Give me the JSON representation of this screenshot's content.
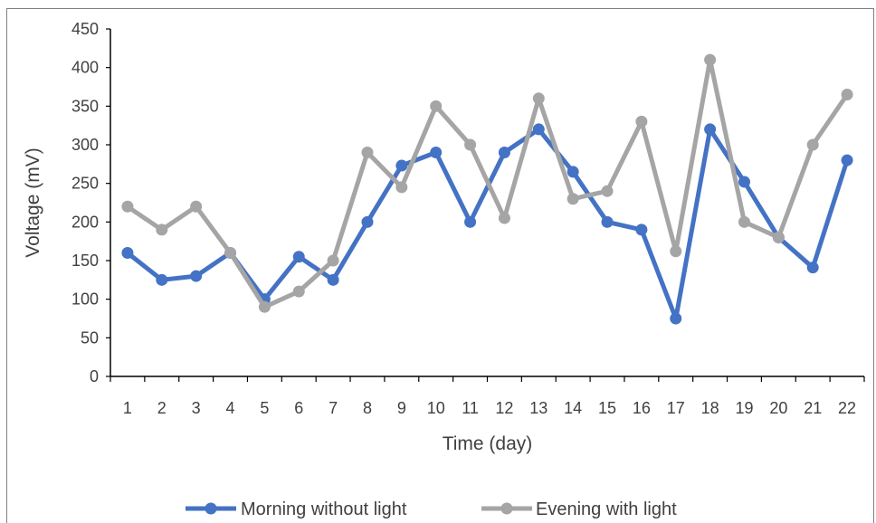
{
  "chart_data": {
    "type": "line",
    "title": "",
    "xlabel": "Time (day)",
    "ylabel": "Voltage (mV)",
    "ylim": [
      0,
      450
    ],
    "yticks": [
      0,
      50,
      100,
      150,
      200,
      250,
      300,
      350,
      400,
      450
    ],
    "categories": [
      "1",
      "2",
      "3",
      "4",
      "5",
      "6",
      "7",
      "8",
      "9",
      "10",
      "11",
      "12",
      "13",
      "14",
      "15",
      "16",
      "17",
      "18",
      "19",
      "20",
      "21",
      "22"
    ],
    "grid": false,
    "legend_position": "bottom",
    "series": [
      {
        "name": "Morning without light",
        "color": "#4472c4",
        "values": [
          160,
          125,
          130,
          160,
          100,
          155,
          125,
          200,
          273,
          290,
          200,
          290,
          320,
          265,
          200,
          190,
          75,
          320,
          252,
          180,
          141,
          280
        ]
      },
      {
        "name": "Evening with light",
        "color": "#a5a5a5",
        "values": [
          220,
          190,
          220,
          160,
          90,
          110,
          150,
          290,
          245,
          350,
          300,
          205,
          360,
          230,
          240,
          330,
          162,
          410,
          200,
          180,
          300,
          365
        ]
      }
    ]
  }
}
